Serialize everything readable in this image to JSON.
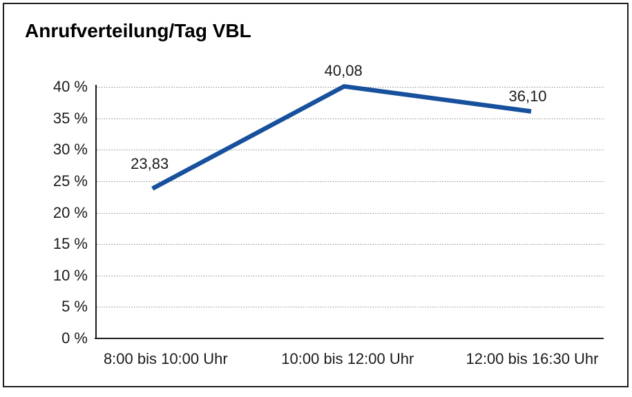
{
  "chart_data": {
    "type": "line",
    "title": "Anrufverteilung/Tag VBL",
    "categories": [
      "8:00 bis 10:00 Uhr",
      "10:00 bis 12:00 Uhr",
      "12:00 bis 16:30 Uhr"
    ],
    "values": [
      23.83,
      40.08,
      36.1
    ],
    "data_labels": [
      "23,83",
      "40,08",
      "36,10"
    ],
    "y_axis": {
      "min": 0,
      "max": 40,
      "step": 5,
      "unit": "%",
      "tick_labels": [
        "0 %",
        "5 %",
        "10 %",
        "15 %",
        "20 %",
        "25 %",
        "30 %",
        "35 %",
        "40 %"
      ]
    },
    "xlabel": "",
    "ylabel": "",
    "grid": "horizontal-dotted",
    "legend": "none",
    "colors": {
      "line": "#17509C",
      "grid": "#6e6e6e",
      "axis": "#1a1a1a",
      "text": "#1a1a1a",
      "border": "#1c1c1c",
      "background": "#ffffff",
      "title": "#000000"
    }
  }
}
